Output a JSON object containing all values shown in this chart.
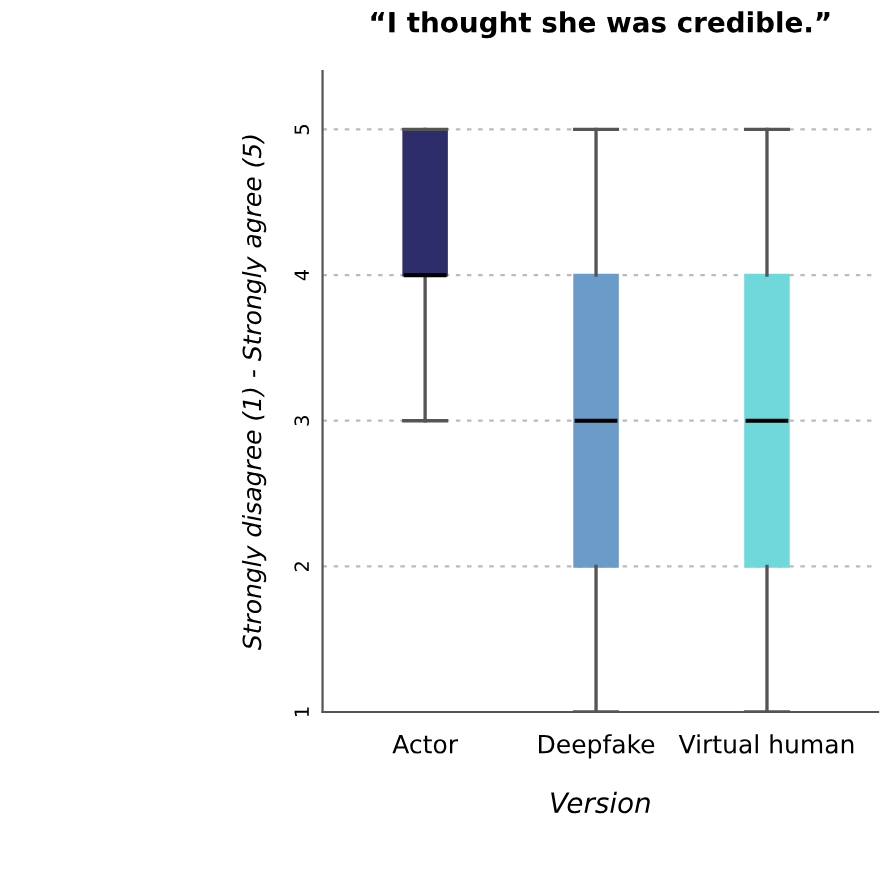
{
  "chart_data": {
    "type": "box",
    "title": "“I thought she was credible.”",
    "xlabel": "Version",
    "ylabel": "Strongly disagree (1) - Strongly agree (5)",
    "categories": [
      "Actor",
      "Deepfake",
      "Virtual human"
    ],
    "boxes": [
      {
        "low": 3,
        "q1": 4,
        "median": 4,
        "q3": 5,
        "high": 5
      },
      {
        "low": 1,
        "q1": 2,
        "median": 3,
        "q3": 4,
        "high": 5
      },
      {
        "low": 1,
        "q1": 2,
        "median": 3,
        "q3": 4,
        "high": 5
      }
    ],
    "colors": [
      "#2e2d6b",
      "#6b9bc9",
      "#6fd8db"
    ],
    "ylim": [
      1,
      5.4
    ],
    "yticks": [
      1,
      2,
      3,
      4,
      5
    ],
    "grid": "y"
  }
}
